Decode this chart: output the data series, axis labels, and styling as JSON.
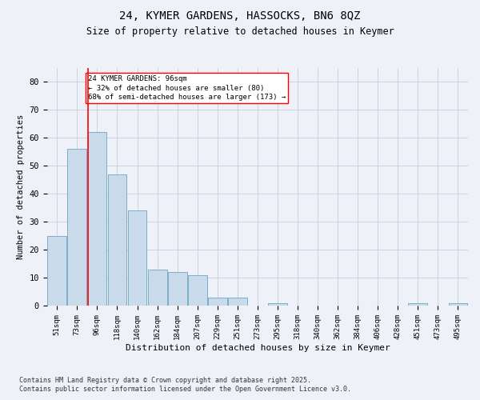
{
  "title1": "24, KYMER GARDENS, HASSOCKS, BN6 8QZ",
  "title2": "Size of property relative to detached houses in Keymer",
  "xlabel": "Distribution of detached houses by size in Keymer",
  "ylabel": "Number of detached properties",
  "categories": [
    "51sqm",
    "73sqm",
    "96sqm",
    "118sqm",
    "140sqm",
    "162sqm",
    "184sqm",
    "207sqm",
    "229sqm",
    "251sqm",
    "273sqm",
    "295sqm",
    "318sqm",
    "340sqm",
    "362sqm",
    "384sqm",
    "406sqm",
    "428sqm",
    "451sqm",
    "473sqm",
    "495sqm"
  ],
  "values": [
    25,
    56,
    62,
    47,
    34,
    13,
    12,
    11,
    3,
    3,
    0,
    1,
    0,
    0,
    0,
    0,
    0,
    0,
    1,
    0,
    1
  ],
  "bar_color": "#c9daea",
  "bar_edge_color": "#7aafc7",
  "highlight_index": 2,
  "annotation_text": "24 KYMER GARDENS: 96sqm\n← 32% of detached houses are smaller (80)\n68% of semi-detached houses are larger (173) →",
  "ylim": [
    0,
    85
  ],
  "yticks": [
    0,
    10,
    20,
    30,
    40,
    50,
    60,
    70,
    80
  ],
  "footer1": "Contains HM Land Registry data © Crown copyright and database right 2025.",
  "footer2": "Contains public sector information licensed under the Open Government Licence v3.0.",
  "bg_color": "#eef2f8",
  "plot_bg_color": "#eef2f8",
  "grid_color": "#c0c8d8"
}
